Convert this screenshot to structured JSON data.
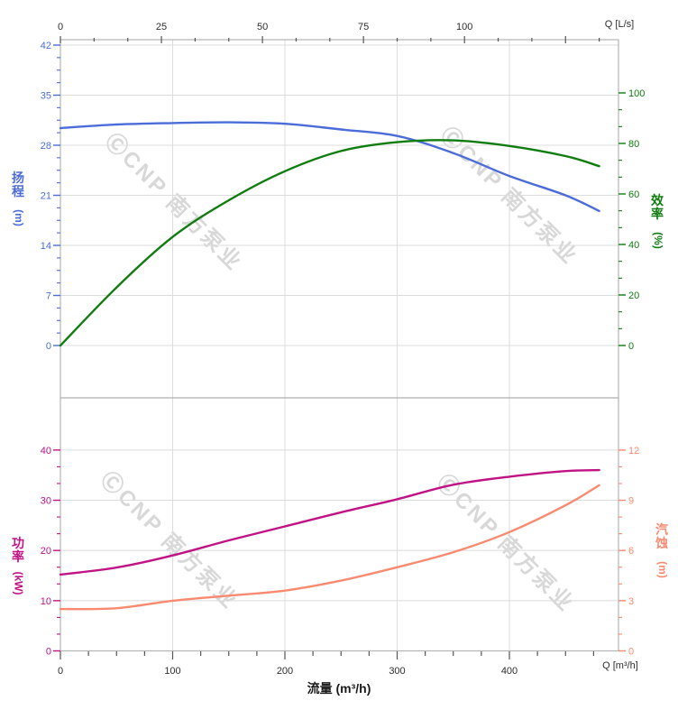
{
  "watermark": {
    "text": "ⒸCNP 南方泵业",
    "color": "#d8d8d8"
  },
  "colors": {
    "head": "#4b6cd9",
    "efficiency": "#107c10",
    "power": "#c01384",
    "npsh": "#f98a6f",
    "grid": "#dcdcdc",
    "border": "#b4b4b4",
    "axis_text": "#2e2e2e"
  },
  "axes": {
    "top": {
      "end_label": "Q [L/s]",
      "unit": "L/s",
      "ticks": [
        0,
        25,
        50,
        75,
        100
      ]
    },
    "bottom": {
      "end_label": "Q [m³/h]",
      "unit": "m³/h",
      "ticks": [
        0,
        100,
        200,
        300,
        400
      ],
      "title": "流量 (m³/h)"
    },
    "head": {
      "chars": [
        "扬",
        "程"
      ],
      "unit": "(m)",
      "label": "扬程 (m)",
      "ticks": [
        0,
        7,
        14,
        21,
        28,
        35,
        42
      ],
      "color": "#4b6cd9"
    },
    "efficiency": {
      "chars": [
        "效",
        "率"
      ],
      "unit": "(%)",
      "label": "效率 (%)",
      "ticks": [
        0,
        20,
        40,
        60,
        80,
        100
      ],
      "color": "#107c10"
    },
    "power": {
      "chars": [
        "功",
        "率"
      ],
      "unit": "(kW)",
      "label": "功率 (kW)",
      "ticks": [
        0,
        10,
        20,
        30,
        40
      ],
      "color": "#c01384"
    },
    "npsh": {
      "chars": [
        "汽",
        "蚀"
      ],
      "unit": "(m)",
      "label": "汽蚀 (m)",
      "ticks": [
        0,
        3,
        6,
        9,
        12
      ],
      "color": "#f98a6f"
    }
  },
  "chart_data": [
    {
      "type": "line",
      "title": "",
      "x": [
        0,
        50,
        100,
        150,
        200,
        250,
        300,
        350,
        400,
        450,
        480
      ],
      "xlabel": "Q [m³/h] (top axis Q [L/s], 0–25–50–75–100)",
      "x_top_axis": {
        "unit": "L/s",
        "ticks": [
          0,
          25,
          50,
          75,
          100
        ],
        "conversion": "1 L/s = 3.6 m³/h"
      },
      "grid": true,
      "series": [
        {
          "name": "扬程 (Head)",
          "yaxis": "head",
          "unit": "m",
          "color": "#4b6cd9",
          "ylim": [
            -7.3,
            42.8
          ],
          "yticks": [
            0,
            7,
            14,
            21,
            28,
            35,
            42
          ],
          "values": [
            30.4,
            30.9,
            31.1,
            31.2,
            31.0,
            30.2,
            29.3,
            26.9,
            23.7,
            21.0,
            18.8
          ]
        },
        {
          "name": "效率 (Efficiency)",
          "yaxis": "efficiency",
          "unit": "%",
          "color": "#107c10",
          "ylim": [
            -20.7,
            121.1
          ],
          "yticks": [
            0,
            20,
            40,
            60,
            80,
            100
          ],
          "values": [
            0,
            23,
            43,
            57.5,
            69,
            77,
            80.5,
            81.2,
            79,
            75,
            71
          ]
        }
      ]
    },
    {
      "type": "line",
      "title": "",
      "x": [
        0,
        50,
        100,
        150,
        200,
        250,
        300,
        350,
        400,
        450,
        480
      ],
      "xlabel": "流量 (m³/h)",
      "grid": true,
      "series": [
        {
          "name": "功率 (Power)",
          "yaxis": "power",
          "unit": "kW",
          "color": "#c01384",
          "ylim": [
            0,
            50.4
          ],
          "yticks": [
            0,
            10,
            20,
            30,
            40
          ],
          "values": [
            15.2,
            16.6,
            19.0,
            22.0,
            24.8,
            27.6,
            30.2,
            33.1,
            34.7,
            35.8,
            36.0
          ]
        },
        {
          "name": "汽蚀 (NPSH)",
          "yaxis": "npsh",
          "unit": "m",
          "color": "#f98a6f",
          "ylim": [
            0,
            15.1
          ],
          "yticks": [
            0,
            3,
            6,
            9,
            12
          ],
          "values": [
            2.5,
            2.55,
            3.0,
            3.3,
            3.6,
            4.2,
            5.0,
            5.9,
            7.1,
            8.7,
            9.9
          ]
        }
      ]
    }
  ]
}
